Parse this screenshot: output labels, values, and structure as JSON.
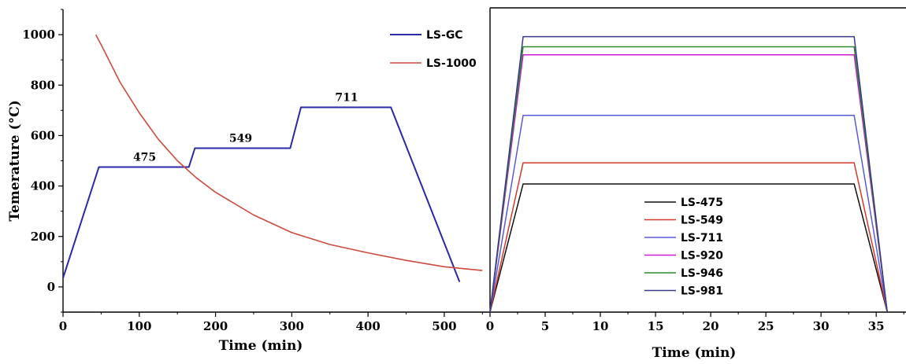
{
  "chart_data": [
    {
      "type": "line",
      "xlabel": "Time (min)",
      "ylabel": "Temerature (°C)",
      "xlim": [
        0,
        560
      ],
      "ylim": [
        -100,
        1100
      ],
      "xticks": [
        0,
        100,
        200,
        300,
        400,
        500
      ],
      "yticks": [
        0,
        200,
        400,
        600,
        800,
        1000
      ],
      "grid": false,
      "legend_position": "top-right",
      "series": [
        {
          "name": "LS-GC",
          "color": "#2a2aa6",
          "x": [
            0,
            47,
            165,
            173,
            298,
            312,
            430,
            520
          ],
          "y": [
            35,
            475,
            475,
            550,
            550,
            712,
            712,
            20
          ]
        },
        {
          "name": "LS-1000",
          "color": "#cd4a3c",
          "x": [
            43,
            50,
            75,
            100,
            125,
            150,
            175,
            200,
            250,
            300,
            350,
            400,
            450,
            500,
            550
          ],
          "y": [
            1000,
            960,
            810,
            690,
            585,
            500,
            432,
            375,
            285,
            215,
            168,
            135,
            105,
            80,
            65
          ]
        }
      ],
      "annotations": [
        {
          "text": "475",
          "x": 107,
          "y": 475
        },
        {
          "text": "549",
          "x": 233,
          "y": 550
        },
        {
          "text": "711",
          "x": 372,
          "y": 712
        }
      ]
    },
    {
      "type": "line",
      "xlabel": "Time (min)",
      "xlim": [
        0,
        37.7
      ],
      "ylim": [
        -100,
        1100
      ],
      "xticks": [
        0,
        5,
        10,
        15,
        20,
        25,
        30,
        35
      ],
      "grid": false,
      "legend_position": "bottom-center",
      "series": [
        {
          "name": "LS-475",
          "color": "#111111",
          "x": [
            0,
            3,
            33,
            36
          ],
          "y": [
            -100,
            408,
            408,
            -100
          ]
        },
        {
          "name": "LS-549",
          "color": "#d43a2a",
          "x": [
            0,
            3,
            33,
            36
          ],
          "y": [
            -100,
            492,
            492,
            -100
          ]
        },
        {
          "name": "LS-711",
          "color": "#5a5ad8",
          "x": [
            0,
            3,
            33,
            36
          ],
          "y": [
            -100,
            680,
            680,
            -100
          ]
        },
        {
          "name": "LS-920",
          "color": "#d11ad6",
          "x": [
            0,
            3,
            33,
            36
          ],
          "y": [
            -100,
            920,
            920,
            -100
          ]
        },
        {
          "name": "LS-946",
          "color": "#2c8a2c",
          "x": [
            0,
            3,
            33,
            36
          ],
          "y": [
            -100,
            952,
            952,
            -100
          ]
        },
        {
          "name": "LS-981",
          "color": "#3a3a8a",
          "x": [
            0,
            3,
            33,
            36
          ],
          "y": [
            -100,
            992,
            992,
            -100
          ]
        }
      ]
    }
  ]
}
